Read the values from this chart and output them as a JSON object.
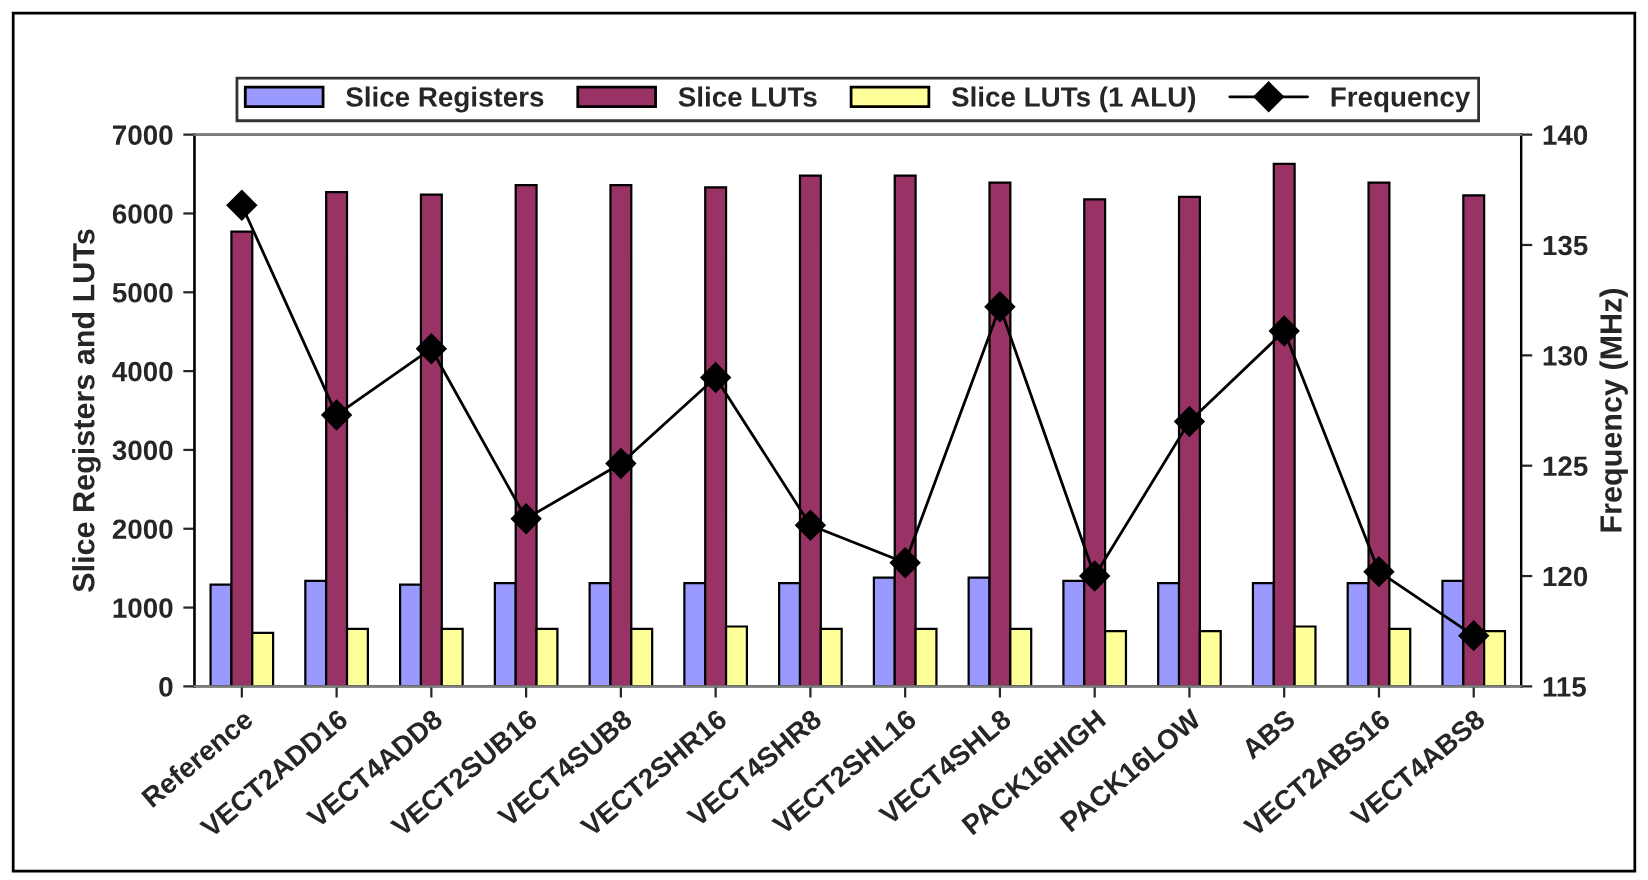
{
  "chart_data": {
    "type": "bar",
    "categories": [
      "Reference",
      "VECT2ADD16",
      "VECT4ADD8",
      "VECT2SUB16",
      "VECT4SUB8",
      "VECT2SHR16",
      "VECT4SHR8",
      "VECT2SHL16",
      "VECT4SHL8",
      "PACK16HIGH",
      "PACK16LOW",
      "ABS",
      "VECT2ABS16",
      "VECT4ABS8"
    ],
    "series": [
      {
        "name": "Slice Registers",
        "color": "#9999ff",
        "values": [
          1290,
          1340,
          1290,
          1310,
          1310,
          1310,
          1310,
          1380,
          1380,
          1340,
          1310,
          1310,
          1310,
          1340
        ]
      },
      {
        "name": "Slice LUTs",
        "color": "#993366",
        "values": [
          5770,
          6270,
          6240,
          6360,
          6360,
          6330,
          6480,
          6480,
          6390,
          6180,
          6210,
          6630,
          6390,
          6230
        ]
      },
      {
        "name": "Slice LUTs (1 ALU)",
        "color": "#ffff99",
        "values": [
          680,
          730,
          730,
          730,
          730,
          760,
          730,
          730,
          730,
          700,
          700,
          760,
          730,
          700
        ]
      },
      {
        "name": "Frequency",
        "type": "line",
        "axis": "y2",
        "color": "#000000",
        "marker": "diamond",
        "values": [
          136.8,
          127.3,
          130.3,
          122.6,
          125.1,
          129.0,
          122.3,
          120.6,
          132.2,
          120.0,
          127.0,
          131.1,
          120.2,
          117.3
        ]
      }
    ],
    "ylabel": "Slice Registers and LUTs",
    "y2label": "Frequency (MHz)",
    "ylim": [
      0,
      7000
    ],
    "yticks": [
      0,
      1000,
      2000,
      3000,
      4000,
      5000,
      6000,
      7000
    ],
    "y2lim": [
      115,
      140
    ],
    "y2ticks": [
      115,
      120,
      125,
      130,
      135,
      140
    ],
    "legend": "top",
    "grid": false
  }
}
